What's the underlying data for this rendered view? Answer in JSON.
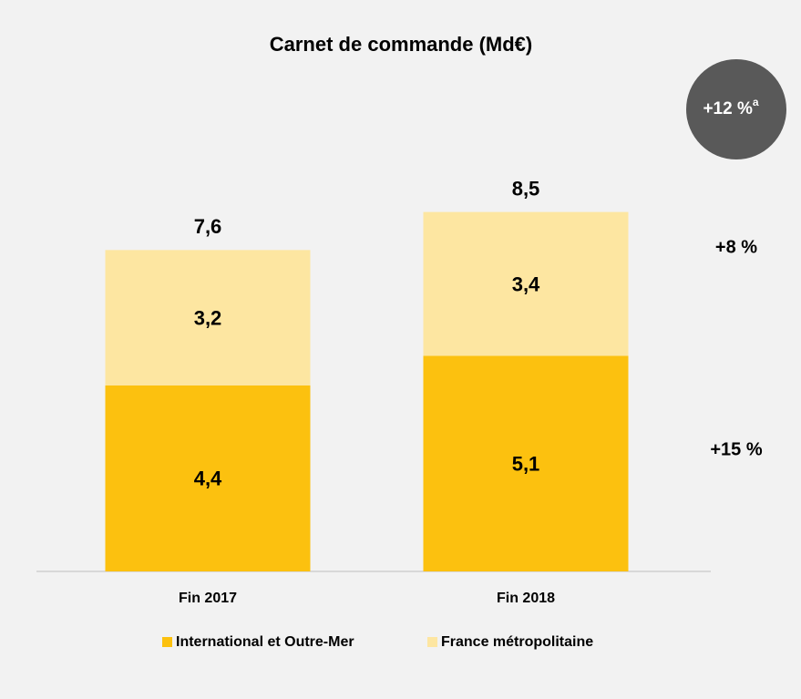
{
  "chart_data": {
    "type": "stacked_bar",
    "title": "Carnet de commande (Md€)",
    "categories": [
      "Fin 2017",
      "Fin 2018"
    ],
    "series": [
      {
        "name": "International et Outre-Mer",
        "color": "#fcc10f",
        "values": [
          4.4,
          5.1
        ],
        "value_labels": [
          "4,4",
          "5,1"
        ]
      },
      {
        "name": "France métropolitaine",
        "color": "#fde6a1",
        "values": [
          3.2,
          3.4
        ],
        "value_labels": [
          "3,2",
          "3,4"
        ]
      }
    ],
    "totals": [
      7.6,
      8.5
    ],
    "total_labels": [
      "7,6",
      "8,5"
    ],
    "ylim": [
      0,
      10
    ],
    "annotations": [
      "+8 %",
      "+15 %"
    ],
    "badge": {
      "text": "+12 %",
      "superscript": "a",
      "color": "#595959"
    },
    "legend": "bottom"
  }
}
